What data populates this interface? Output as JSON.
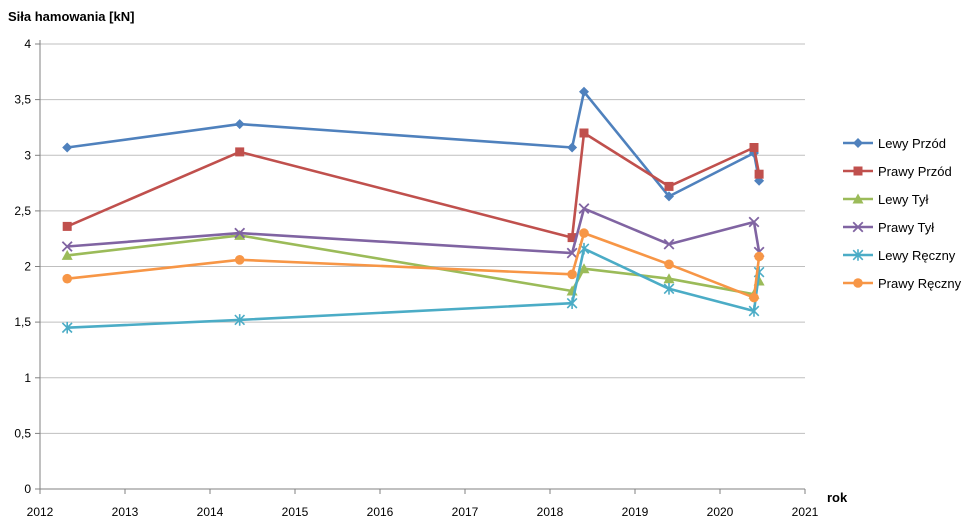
{
  "chart_data": {
    "type": "line",
    "title": "Siła hamowania [kN]",
    "xlabel": "rok",
    "ylabel": "Siła hamowania [kN]",
    "xlim": [
      2012,
      2021
    ],
    "ylim": [
      0,
      4
    ],
    "x_ticks": [
      2012,
      2013,
      2014,
      2015,
      2016,
      2017,
      2018,
      2019,
      2020,
      2021
    ],
    "x_tick_labels": [
      "2012",
      "2013",
      "2014",
      "2015",
      "2016",
      "2017",
      "2018",
      "2019",
      "2020",
      "2021"
    ],
    "y_ticks": [
      0,
      0.5,
      1,
      1.5,
      2,
      2.5,
      3,
      3.5,
      4
    ],
    "y_tick_labels": [
      "0",
      "0,5",
      "1",
      "1,5",
      "2",
      "2,5",
      "3",
      "3,5",
      "4"
    ],
    "grid": "horizontal",
    "grid_color": "#BFBFBF",
    "axis_color": "#808080",
    "legend_position": "right",
    "x": [
      2012.32,
      2014.35,
      2018.26,
      2018.4,
      2019.4,
      2020.4,
      2020.46
    ],
    "series": [
      {
        "name": "Lewy Przód",
        "color": "#4F81BD",
        "marker": "diamond",
        "values": [
          3.07,
          3.28,
          3.07,
          3.57,
          2.63,
          3.02,
          2.77
        ]
      },
      {
        "name": "Prawy Przód",
        "color": "#C0504D",
        "marker": "square",
        "values": [
          2.36,
          3.03,
          2.26,
          3.2,
          2.72,
          3.07,
          2.83
        ]
      },
      {
        "name": "Lewy Tył",
        "color": "#9BBB59",
        "marker": "triangle",
        "values": [
          2.1,
          2.28,
          1.78,
          1.98,
          1.89,
          1.75,
          1.87
        ]
      },
      {
        "name": "Prawy Tył",
        "color": "#8064A2",
        "marker": "x",
        "values": [
          2.18,
          2.3,
          2.12,
          2.52,
          2.2,
          2.4,
          2.13
        ]
      },
      {
        "name": "Lewy Ręczny",
        "color": "#4BACC6",
        "marker": "asterisk",
        "values": [
          1.45,
          1.52,
          1.67,
          2.16,
          1.8,
          1.6,
          1.95
        ]
      },
      {
        "name": "Prawy Ręczny",
        "color": "#F79646",
        "marker": "circle",
        "values": [
          1.89,
          2.06,
          1.93,
          2.3,
          2.02,
          1.72,
          2.09
        ]
      }
    ]
  }
}
